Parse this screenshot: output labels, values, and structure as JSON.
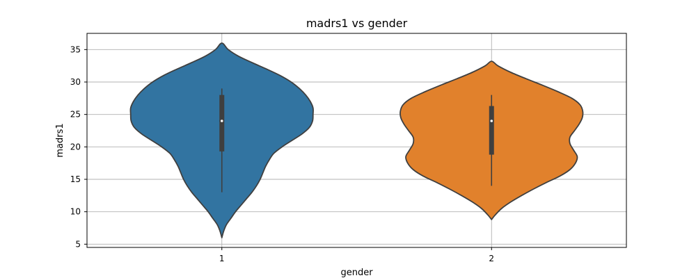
{
  "chart_data": {
    "type": "violin",
    "title": "madrs1 vs gender",
    "xlabel": "gender",
    "ylabel": "madrs1",
    "categories": [
      "1",
      "2"
    ],
    "ylim": [
      4.5,
      37.5
    ],
    "yticks": [
      5,
      10,
      15,
      20,
      25,
      30,
      35
    ],
    "grid": true,
    "colors": [
      "#3274a1",
      "#e1812c"
    ],
    "violins": [
      {
        "category": "1",
        "min": 13,
        "q1": 19.3,
        "median": 24,
        "q3": 28,
        "max": 29,
        "kde_low": 6,
        "kde_high": 36,
        "profile": [
          [
            6,
            0.0
          ],
          [
            7,
            0.02
          ],
          [
            8,
            0.05
          ],
          [
            9,
            0.1
          ],
          [
            10,
            0.15
          ],
          [
            11,
            0.21
          ],
          [
            12,
            0.27
          ],
          [
            13,
            0.33
          ],
          [
            14,
            0.38
          ],
          [
            15,
            0.42
          ],
          [
            16,
            0.45
          ],
          [
            17,
            0.48
          ],
          [
            18,
            0.52
          ],
          [
            19,
            0.57
          ],
          [
            20,
            0.66
          ],
          [
            21,
            0.77
          ],
          [
            22,
            0.88
          ],
          [
            23,
            0.96
          ],
          [
            24,
            0.995
          ],
          [
            25,
            1.0
          ],
          [
            26,
            1.0
          ],
          [
            27,
            0.97
          ],
          [
            28,
            0.92
          ],
          [
            29,
            0.85
          ],
          [
            30,
            0.76
          ],
          [
            31,
            0.64
          ],
          [
            32,
            0.49
          ],
          [
            33,
            0.33
          ],
          [
            34,
            0.18
          ],
          [
            35,
            0.07
          ],
          [
            36,
            0.0
          ]
        ]
      },
      {
        "category": "2",
        "min": 14,
        "q1": 18.8,
        "median": 24,
        "q3": 26.3,
        "max": 28,
        "kde_low": 8.8,
        "kde_high": 33.2,
        "profile": [
          [
            8.8,
            0.0
          ],
          [
            9.5,
            0.04
          ],
          [
            10.5,
            0.11
          ],
          [
            11.5,
            0.21
          ],
          [
            12.5,
            0.33
          ],
          [
            13.5,
            0.46
          ],
          [
            14.5,
            0.6
          ],
          [
            15.5,
            0.75
          ],
          [
            16.5,
            0.86
          ],
          [
            17.5,
            0.92
          ],
          [
            18.5,
            0.94
          ],
          [
            19.5,
            0.9
          ],
          [
            20.5,
            0.86
          ],
          [
            21.5,
            0.86
          ],
          [
            22.5,
            0.91
          ],
          [
            23.5,
            0.96
          ],
          [
            24.5,
            0.995
          ],
          [
            25.5,
            1.0
          ],
          [
            26.5,
            0.97
          ],
          [
            27.5,
            0.88
          ],
          [
            28.5,
            0.73
          ],
          [
            29.5,
            0.56
          ],
          [
            30.5,
            0.38
          ],
          [
            31.5,
            0.21
          ],
          [
            32.5,
            0.07
          ],
          [
            33.2,
            0.0
          ]
        ]
      }
    ]
  }
}
